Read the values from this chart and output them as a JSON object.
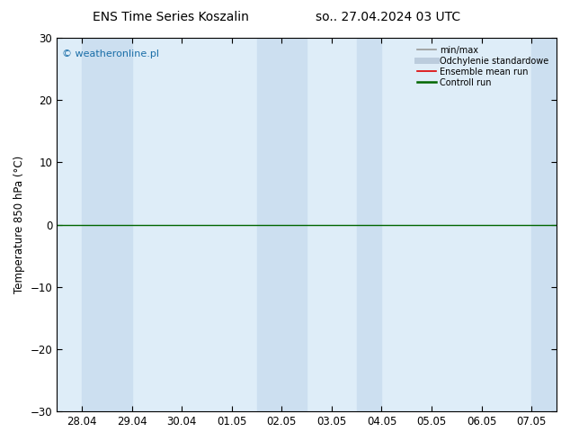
{
  "title_left": "ENS Time Series Koszalin",
  "title_right": "so.. 27.04.2024 03 UTC",
  "ylabel": "Temperature 850 hPa (°C)",
  "watermark": "© weatheronline.pl",
  "ylim": [
    -30,
    30
  ],
  "yticks": [
    -30,
    -20,
    -10,
    0,
    10,
    20,
    30
  ],
  "x_labels": [
    "28.04",
    "29.04",
    "30.04",
    "01.05",
    "02.05",
    "03.05",
    "04.05",
    "05.05",
    "06.05",
    "07.05"
  ],
  "x_positions": [
    0,
    1,
    2,
    3,
    4,
    5,
    6,
    7,
    8,
    9
  ],
  "shaded_columns_xmin": [
    0.0,
    0.5,
    3.5,
    4.0,
    5.5,
    9.0
  ],
  "shaded_columns_xmax": [
    0.5,
    1.0,
    4.0,
    4.5,
    6.0,
    9.5
  ],
  "shade_color": "#ccdff0",
  "plot_bg_color": "#deedf8",
  "zero_line_color": "#006600",
  "bg_color": "#ffffff",
  "legend_items": [
    {
      "label": "min/max",
      "color": "#999999",
      "lw": 1.2
    },
    {
      "label": "Odchylenie standardowe",
      "color": "#bbccdd",
      "lw": 5
    },
    {
      "label": "Ensemble mean run",
      "color": "#dd0000",
      "lw": 1.2
    },
    {
      "label": "Controll run",
      "color": "#006600",
      "lw": 1.8
    }
  ],
  "title_fontsize": 10,
  "axis_fontsize": 8.5,
  "watermark_fontsize": 8,
  "watermark_color": "#1a6ea8",
  "figsize": [
    6.34,
    4.9
  ],
  "dpi": 100
}
